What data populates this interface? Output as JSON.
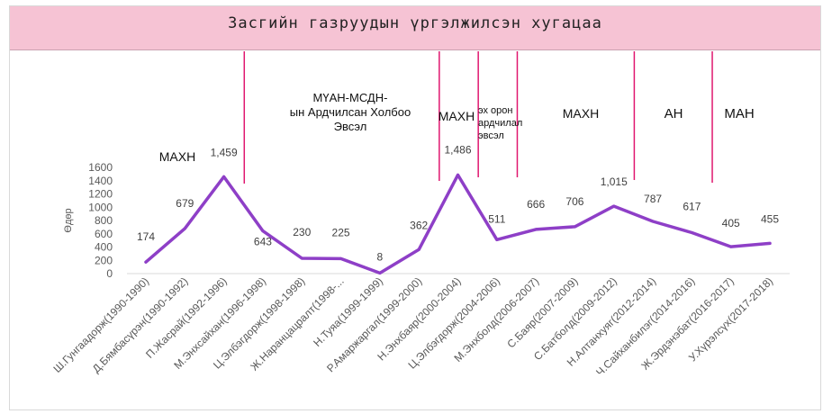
{
  "chart_data": {
    "type": "line",
    "title": "Засгийн газруудын үргэлжилсэн хугацаа",
    "ylabel": "Өдөр",
    "xlabel": "",
    "ylim": [
      0,
      1600
    ],
    "yticks": [
      0,
      200,
      400,
      600,
      800,
      1000,
      1200,
      1400,
      1600
    ],
    "grid": false,
    "line_color": "#8e3fc7",
    "divider_color": "#e0176f",
    "categories": [
      "Ш.Гунгаадорж(1990-1990)",
      "Д.Бямбасүрэн(1990-1992)",
      "П.Жасрай(1992-1996)",
      "М.Энхсайхан(1996-1998)",
      "Ц.Элбэгдорж(1998-1998)",
      "Ж.Наранцацралт(1998-...",
      "Н.Туяа(1999-1999)",
      "Р.Амаржаргал(1999-2000)",
      "Н.Энхбаяр(2000-2004)",
      "Ц.Элбэгдорж(2004-2006)",
      "М.Энхболд(2006-2007)",
      "С.Баяр(2007-2009)",
      "С.Батболд(2009-2012)",
      "Н.Алтанхуяг(2012-2014)",
      "Ч.Сайханбилэг(2014-2016)",
      "Ж.Эрдэнэбат(2016-2017)",
      "У.Хүрэлсүх(2017-2018)"
    ],
    "values": [
      174,
      679,
      1459,
      643,
      230,
      225,
      8,
      362,
      1486,
      511,
      666,
      706,
      1015,
      787,
      617,
      405,
      455
    ],
    "value_labels": [
      "174",
      "679",
      "1,459",
      "643",
      "230",
      "225",
      "8",
      "362",
      "1,486",
      "511",
      "666",
      "706",
      "1,015",
      "787",
      "617",
      "405",
      "455"
    ],
    "period_labels": [
      {
        "lines": [
          "МАХН"
        ],
        "size": 14
      },
      {
        "lines": [
          "МҮАН-МСДН-",
          "ын Ардчилсан Холбоо",
          "Эвсэл"
        ],
        "size": 13
      },
      {
        "lines": [
          "МАХН"
        ],
        "size": 14
      },
      {
        "lines": [
          "эх орон",
          "ардчилал",
          "эвсэл"
        ],
        "size": 11
      },
      {
        "lines": [
          "МАХН"
        ],
        "size": 14
      },
      {
        "lines": [
          "АН"
        ],
        "size": 15
      },
      {
        "lines": [
          "МАН"
        ],
        "size": 15
      }
    ]
  }
}
